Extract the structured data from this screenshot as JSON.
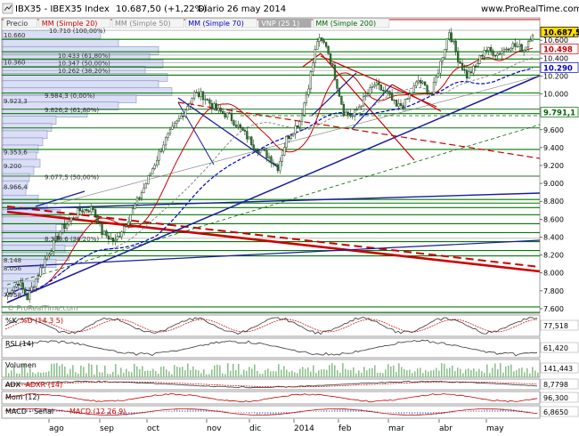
{
  "header": {
    "symbol": "IBX35 - IBEX35 Index",
    "price_change": "10.687,50 (+1,22%)",
    "period_date": "Diario  26 may 2014",
    "site": "www.ProRealTime.com"
  },
  "overlay_legend": [
    {
      "text": "Precio",
      "color": "#333333"
    },
    {
      "text": "MM (Simple 20)",
      "color": "#cc0000"
    },
    {
      "text": "MM (Simple 50)",
      "color": "#888888"
    },
    {
      "text": "MM (Simple 70)",
      "color": "#0000cc"
    },
    {
      "text": "VNP (25 1)",
      "color": "#ffffff",
      "bg": "#aaaaaa"
    },
    {
      "text": "MM (Simple 200)",
      "color": "#006600"
    }
  ],
  "watermark": "© ProRealTime.com",
  "fib_labels": [
    {
      "text": "10.710 (100,00%)",
      "price": 10710
    },
    {
      "text": "10.433 (61,80%)",
      "price": 10433
    },
    {
      "text": "10.347 (50,00%)",
      "price": 10347
    },
    {
      "text": "10.262 (38,20%)",
      "price": 10262
    },
    {
      "text": "9.984,3 (0,00%)",
      "price": 9984.3
    },
    {
      "text": "9.826,2 (61,80%)",
      "price": 9826.2
    },
    {
      "text": "9.077,5 (50,00%)",
      "price": 9077.5
    },
    {
      "text": "8.386,6 (38,20%)",
      "price": 8386.6
    }
  ],
  "left_levels": [
    {
      "text": "10.660",
      "price": 10660
    },
    {
      "text": "10.360",
      "price": 10360
    },
    {
      "text": "9.923,3",
      "price": 9923.3
    },
    {
      "text": "9.353,6",
      "price": 9353.6
    },
    {
      "text": "9.200",
      "price": 9200
    },
    {
      "text": "8.966,4",
      "price": 8966.4
    },
    {
      "text": "8.148",
      "price": 8148
    },
    {
      "text": "8.056",
      "price": 8056
    },
    {
      "text": "7.758",
      "price": 7758
    }
  ],
  "right_badges": [
    {
      "text": "10.687,50",
      "price": 10687.5,
      "bg": "#ffdd00",
      "fg": "#000000"
    },
    {
      "text": "10.498",
      "price": 10498,
      "bg": "#ffffff",
      "fg": "#cc0000"
    },
    {
      "text": "10.290",
      "price": 10290,
      "bg": "#ffffff",
      "fg": "#0000cc"
    },
    {
      "text": "9.791,1",
      "price": 9791.1,
      "bg": "#ffffff",
      "fg": "#006600"
    }
  ],
  "chart_data": {
    "type": "line",
    "title": "IBX35 - IBEX35 Index",
    "x_labels": [
      "ago",
      "sep",
      "oct",
      "nov",
      "dic",
      "2014",
      "feb",
      "mar",
      "abr",
      "may"
    ],
    "y_ticks": [
      "10.600",
      "10.400",
      "10.200",
      "10.000",
      "9.800",
      "9.600",
      "9.400",
      "9.200",
      "9.000",
      "8.800",
      "8.600",
      "8.400",
      "8.200",
      "8.000",
      "7.800",
      "7.600"
    ],
    "y_range": [
      7550,
      10850
    ],
    "bar_count": 240,
    "price_anchors": [
      [
        0,
        7750
      ],
      [
        6,
        7900
      ],
      [
        10,
        7720
      ],
      [
        18,
        8150
      ],
      [
        26,
        8500
      ],
      [
        34,
        8700
      ],
      [
        40,
        8720
      ],
      [
        44,
        8450
      ],
      [
        50,
        8350
      ],
      [
        58,
        8700
      ],
      [
        64,
        9000
      ],
      [
        72,
        9450
      ],
      [
        80,
        9750
      ],
      [
        86,
        10000
      ],
      [
        90,
        9980
      ],
      [
        96,
        9820
      ],
      [
        102,
        9750
      ],
      [
        108,
        9580
      ],
      [
        114,
        9400
      ],
      [
        120,
        9300
      ],
      [
        124,
        9180
      ],
      [
        128,
        9500
      ],
      [
        134,
        9700
      ],
      [
        138,
        10100
      ],
      [
        142,
        10600
      ],
      [
        146,
        10550
      ],
      [
        150,
        10200
      ],
      [
        154,
        9800
      ],
      [
        158,
        9750
      ],
      [
        162,
        9900
      ],
      [
        168,
        10100
      ],
      [
        174,
        10000
      ],
      [
        178,
        9850
      ],
      [
        182,
        9900
      ],
      [
        188,
        10150
      ],
      [
        194,
        10000
      ],
      [
        198,
        10350
      ],
      [
        202,
        10700
      ],
      [
        206,
        10400
      ],
      [
        210,
        10200
      ],
      [
        214,
        10300
      ],
      [
        218,
        10500
      ],
      [
        224,
        10450
      ],
      [
        230,
        10550
      ],
      [
        236,
        10500
      ],
      [
        240,
        10690
      ]
    ],
    "indicators": [
      {
        "name": "%K",
        "name2": "%D (14 3 5)",
        "value": "77,518"
      },
      {
        "name": "RSI (14)",
        "value": "61,420"
      },
      {
        "name": "Volumen",
        "value": "141,443"
      },
      {
        "name": "ADX",
        "name2": "ADXR (14)",
        "value": "8,7798"
      },
      {
        "name": "Mom (12)",
        "value": "96,300"
      },
      {
        "name": "MACD - Señal",
        "name2": "MACD (12 26 9)",
        "value": "6,8650"
      }
    ]
  }
}
